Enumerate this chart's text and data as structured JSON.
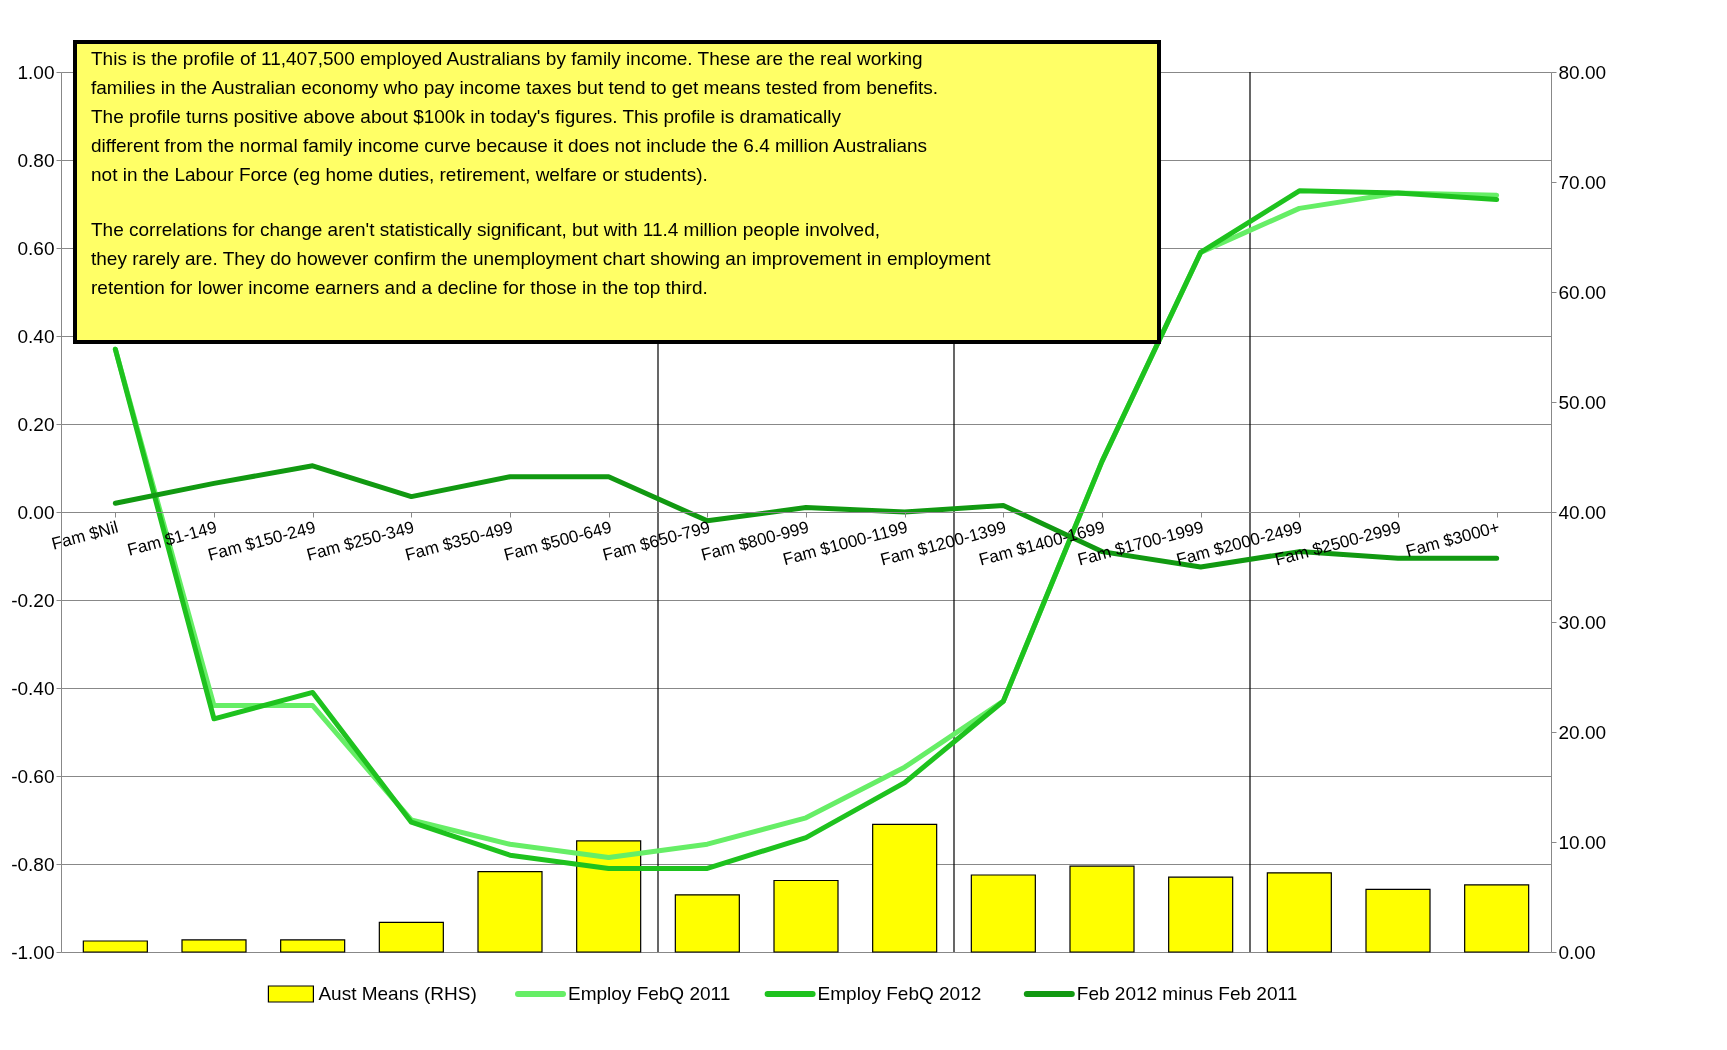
{
  "chart_data": {
    "type": "line",
    "categories": [
      "Fam $Nil",
      "Fam $1-149",
      "Fam $150-249",
      "Fam $250-349",
      "Fam $350-499",
      "Fam $500-649",
      "Fam $650-799",
      "Fam $800-999",
      "Fam $1000-1199",
      "Fam $1200-1399",
      "Fam $1400-1699",
      "Fam $1700-1999",
      "Fam $2000-2499",
      "Fam $2500-2999",
      "Fam $3000+"
    ],
    "series": [
      {
        "name": "Aust Means (RHS)",
        "type": "bar",
        "axis": "y2",
        "color": "#ffff00",
        "values": [
          1.0,
          1.1,
          1.1,
          2.7,
          7.3,
          10.1,
          5.2,
          6.5,
          11.6,
          7.0,
          7.8,
          6.8,
          7.2,
          5.7,
          6.1
        ]
      },
      {
        "name": "Employ FebQ 2011",
        "color": "#66ee66",
        "values": [
          0.37,
          -0.44,
          -0.44,
          -0.7,
          -0.755,
          -0.785,
          -0.755,
          -0.695,
          -0.58,
          -0.43,
          0.115,
          0.59,
          0.69,
          0.725,
          0.72
        ]
      },
      {
        "name": "Employ FebQ  2012",
        "color": "#1ec21e",
        "values": [
          0.37,
          -0.47,
          -0.41,
          -0.705,
          -0.78,
          -0.81,
          -0.81,
          -0.74,
          -0.615,
          -0.43,
          0.115,
          0.59,
          0.73,
          0.725,
          0.71
        ]
      },
      {
        "name": "Feb 2012 minus Feb 2011",
        "color": "#119911",
        "values": [
          0.02,
          0.065,
          0.105,
          0.035,
          0.08,
          0.08,
          -0.02,
          0.01,
          0.0,
          0.015,
          -0.09,
          -0.125,
          -0.09,
          -0.105,
          -0.105
        ]
      }
    ],
    "ylim": [
      -1,
      1
    ],
    "yticks": [
      {
        "value": -1,
        "label": "-1.00"
      },
      {
        "value": -0.8,
        "label": "-0.80"
      },
      {
        "value": -0.6,
        "label": "-0.60"
      },
      {
        "value": -0.4,
        "label": "-0.40"
      },
      {
        "value": -0.2,
        "label": "-0.20"
      },
      {
        "value": 0,
        "label": "0.00"
      },
      {
        "value": 0.2,
        "label": "0.20"
      },
      {
        "value": 0.4,
        "label": "0.40"
      },
      {
        "value": 0.6,
        "label": "0.60"
      },
      {
        "value": 0.8,
        "label": "0.80"
      },
      {
        "value": 1,
        "label": "1.00"
      }
    ],
    "y2lim": [
      0,
      80
    ],
    "y2ticks": [
      {
        "value": 0,
        "label": "0.00"
      },
      {
        "value": 10,
        "label": "10.00"
      },
      {
        "value": 20,
        "label": "20.00"
      },
      {
        "value": 30,
        "label": "30.00"
      },
      {
        "value": 40,
        "label": "40.00"
      },
      {
        "value": 50,
        "label": "50.00"
      },
      {
        "value": 60,
        "label": "60.00"
      },
      {
        "value": 70,
        "label": "70.00"
      },
      {
        "value": 80,
        "label": "80.00"
      }
    ],
    "annotations": [
      "This is  the profile of 11,407,500 employed Australians by family income. These are the real working families in the Australian economy who pay income taxes but tend to get means tested from benefits. The profile turns positive above about $100k in today's figures.  This profile is dramatically different from the normal family income curve because it does not include the 6.4 million Australians not in the Labour Force (eg home duties, retirement, welfare or students).",
      "The correlations for change aren't statistically significant, but with 11.4 million people involved, they rarely are. They do however confirm the unemployment chart showing an improvement in employment retention for lower income earners and a decline for those in the top third."
    ],
    "grid": "y",
    "legend": "bottom",
    "line_style": "solid",
    "marker": "none"
  }
}
